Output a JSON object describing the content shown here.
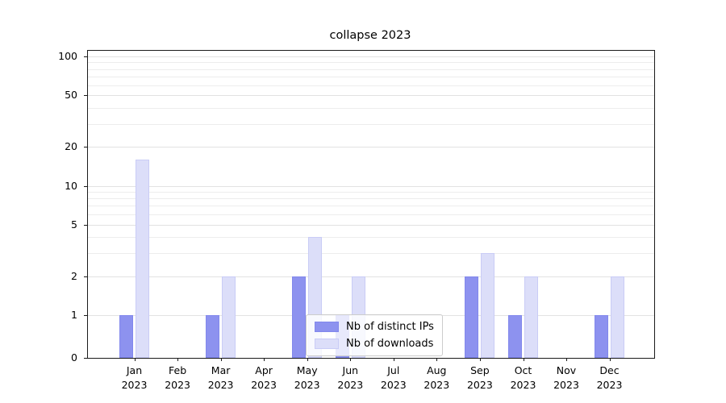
{
  "chart_data": {
    "type": "bar",
    "title": "collapse 2023",
    "categories": [
      "Jan\n2023",
      "Feb\n2023",
      "Mar\n2023",
      "Apr\n2023",
      "May\n2023",
      "Jun\n2023",
      "Jul\n2023",
      "Aug\n2023",
      "Sep\n2023",
      "Oct\n2023",
      "Nov\n2023",
      "Dec\n2023"
    ],
    "series": [
      {
        "name": "Nb of distinct IPs",
        "values": [
          1,
          0,
          1,
          0,
          2,
          1,
          0,
          0,
          2,
          1,
          0,
          1
        ],
        "color": "#8d92ef",
        "edge": "#8288ec"
      },
      {
        "name": "Nb of downloads",
        "values": [
          16,
          0,
          2,
          0,
          4,
          2,
          0,
          0,
          3,
          2,
          0,
          2
        ],
        "color": "#dcdef9",
        "edge": "#c9ccf6"
      }
    ],
    "yscale": "symlog",
    "ylim": [
      0,
      110
    ],
    "yticks": [
      0,
      1,
      2,
      5,
      10,
      20,
      50,
      100
    ],
    "gridline_values": [
      1,
      2,
      3,
      4,
      5,
      6,
      7,
      8,
      9,
      10,
      20,
      30,
      40,
      50,
      60,
      70,
      80,
      90,
      100
    ],
    "grid": true,
    "legend": {
      "position": "lower center",
      "entries": [
        "Nb of distinct IPs",
        "Nb of downloads"
      ]
    },
    "xlabel": "",
    "ylabel": ""
  }
}
